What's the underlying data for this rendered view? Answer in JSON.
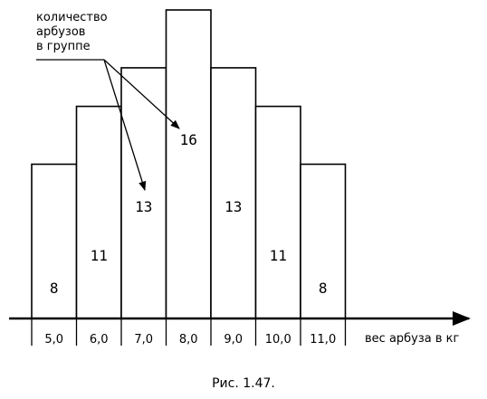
{
  "chart_data": {
    "type": "bar",
    "categories": [
      "5,0",
      "6,0",
      "7,0",
      "8,0",
      "9,0",
      "10,0",
      "11,0"
    ],
    "values": [
      8,
      11,
      13,
      16,
      13,
      11,
      8
    ],
    "value_labels": [
      "8",
      "11",
      "13",
      "16",
      "13",
      "11",
      "8"
    ],
    "xlabel": "вес арбуза в кг",
    "annotation": [
      "количество",
      "арбузов",
      "в группе"
    ],
    "ylim": [
      0,
      16
    ],
    "grid": false,
    "legend": "none"
  },
  "caption": "Рис. 1.47."
}
